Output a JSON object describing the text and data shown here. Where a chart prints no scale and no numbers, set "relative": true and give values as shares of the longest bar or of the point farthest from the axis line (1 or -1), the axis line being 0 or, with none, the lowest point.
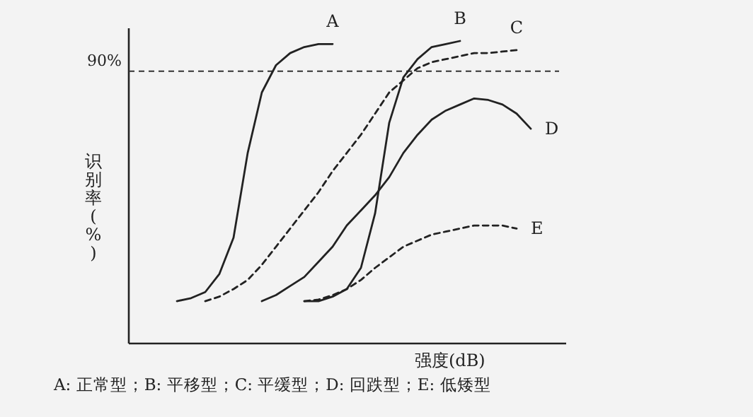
{
  "chart_data": {
    "type": "line",
    "relative": true,
    "xlabel": "强度(dB)",
    "ylabel": "识别率(%)",
    "categories": [
      null,
      null,
      null,
      null,
      null,
      null,
      null,
      null,
      null,
      null,
      null,
      null,
      null,
      null,
      null,
      null,
      null,
      null,
      null,
      null,
      null,
      null,
      null,
      null,
      null,
      null
    ],
    "annotations": [
      "A: 正常型；B: 平移型；C: 平缓型；D: 回跌型；E: 低矮型"
    ],
    "ref_lines": [
      {
        "axis": "y",
        "value": 0.9,
        "label": "90%",
        "line_style": "dashed",
        "color": "#333333"
      }
    ],
    "series": [
      {
        "name": "A",
        "color": "#222222",
        "line_style": "solid",
        "values": [
          0.14,
          0.15,
          0.17,
          0.23,
          0.35,
          0.63,
          0.83,
          0.92,
          0.96,
          0.98,
          0.99,
          0.99,
          null,
          null,
          null,
          null,
          null,
          null,
          null,
          null,
          null,
          null,
          null,
          null,
          null,
          null
        ]
      },
      {
        "name": "B",
        "color": "#222222",
        "line_style": "solid",
        "values": [
          null,
          null,
          null,
          null,
          null,
          null,
          null,
          null,
          null,
          0.14,
          0.14,
          0.155,
          0.18,
          0.25,
          0.43,
          0.73,
          0.88,
          0.94,
          0.98,
          0.99,
          1,
          null,
          null,
          null,
          null,
          null
        ]
      },
      {
        "name": "C",
        "color": "#222222",
        "line_style": "dashed",
        "values": [
          null,
          null,
          0.14,
          0.155,
          0.18,
          0.21,
          0.26,
          0.32,
          0.38,
          0.44,
          0.5,
          0.57,
          0.63,
          0.69,
          0.76,
          0.83,
          0.87,
          0.91,
          0.93,
          0.94,
          0.95,
          0.96,
          0.96,
          0.965,
          0.97,
          null
        ]
      },
      {
        "name": "D",
        "color": "#222222",
        "line_style": "solid",
        "values": [
          null,
          null,
          null,
          null,
          null,
          null,
          0.14,
          0.16,
          0.19,
          0.22,
          0.27,
          0.32,
          0.39,
          0.44,
          0.49,
          0.55,
          0.63,
          0.69,
          0.74,
          0.77,
          0.79,
          0.81,
          0.805,
          0.79,
          0.76,
          0.71
        ]
      },
      {
        "name": "E",
        "color": "#222222",
        "line_style": "dashed",
        "values": [
          null,
          null,
          null,
          null,
          null,
          null,
          null,
          null,
          null,
          0.14,
          0.145,
          0.16,
          0.18,
          0.21,
          0.25,
          0.285,
          0.32,
          0.34,
          0.36,
          0.37,
          0.38,
          0.39,
          0.39,
          0.39,
          0.38,
          null
        ]
      }
    ]
  }
}
